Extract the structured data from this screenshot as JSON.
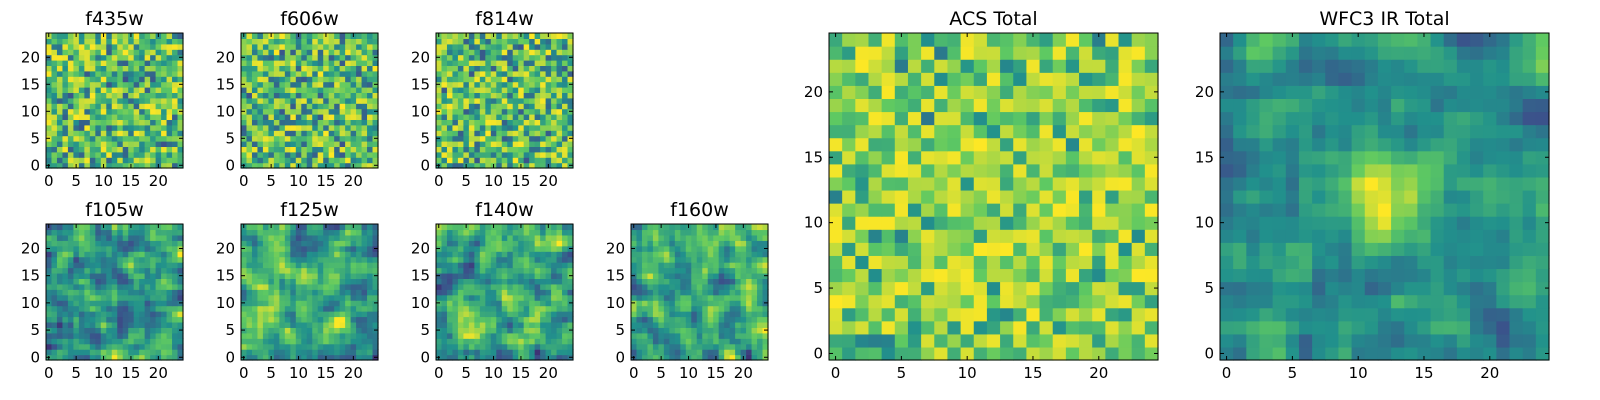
{
  "chart_data": [
    {
      "type": "heatmap",
      "title": "f435w",
      "xticks": [
        0,
        5,
        10,
        15,
        20
      ],
      "yticks": [
        0,
        5,
        10,
        15,
        20
      ],
      "xlim": [
        0,
        25
      ],
      "ylim": [
        0,
        25
      ],
      "grid_size": 25,
      "colormap": "viridis",
      "cmap_stops": [
        "#440154",
        "#3b528b",
        "#21918c",
        "#5ec962",
        "#fde725"
      ],
      "pattern": "noise",
      "seed": 11
    },
    {
      "type": "heatmap",
      "title": "f606w",
      "xticks": [
        0,
        5,
        10,
        15,
        20
      ],
      "yticks": [
        0,
        5,
        10,
        15,
        20
      ],
      "xlim": [
        0,
        25
      ],
      "ylim": [
        0,
        25
      ],
      "grid_size": 25,
      "colormap": "viridis",
      "cmap_stops": [
        "#440154",
        "#3b528b",
        "#21918c",
        "#5ec962",
        "#fde725"
      ],
      "pattern": "noise",
      "seed": 23
    },
    {
      "type": "heatmap",
      "title": "f814w",
      "xticks": [
        0,
        5,
        10,
        15,
        20
      ],
      "yticks": [
        0,
        5,
        10,
        15,
        20
      ],
      "xlim": [
        0,
        25
      ],
      "ylim": [
        0,
        25
      ],
      "grid_size": 25,
      "colormap": "viridis",
      "cmap_stops": [
        "#440154",
        "#3b528b",
        "#21918c",
        "#5ec962",
        "#fde725"
      ],
      "pattern": "noise",
      "seed": 37
    },
    {
      "type": "heatmap",
      "title": "f105w",
      "xticks": [
        0,
        5,
        10,
        15,
        20
      ],
      "yticks": [
        0,
        5,
        10,
        15,
        20
      ],
      "xlim": [
        0,
        25
      ],
      "ylim": [
        0,
        25
      ],
      "grid_size": 25,
      "colormap": "viridis",
      "cmap_stops": [
        "#440154",
        "#3b528b",
        "#21918c",
        "#5ec962",
        "#fde725"
      ],
      "pattern": "smooth",
      "seed": 41
    },
    {
      "type": "heatmap",
      "title": "f125w",
      "xticks": [
        0,
        5,
        10,
        15,
        20
      ],
      "yticks": [
        0,
        5,
        10,
        15,
        20
      ],
      "xlim": [
        0,
        25
      ],
      "ylim": [
        0,
        25
      ],
      "grid_size": 25,
      "colormap": "viridis",
      "cmap_stops": [
        "#440154",
        "#3b528b",
        "#21918c",
        "#5ec962",
        "#fde725"
      ],
      "pattern": "smooth",
      "seed": 53
    },
    {
      "type": "heatmap",
      "title": "f140w",
      "xticks": [
        0,
        5,
        10,
        15,
        20
      ],
      "yticks": [
        0,
        5,
        10,
        15,
        20
      ],
      "xlim": [
        0,
        25
      ],
      "ylim": [
        0,
        25
      ],
      "grid_size": 25,
      "colormap": "viridis",
      "cmap_stops": [
        "#440154",
        "#3b528b",
        "#21918c",
        "#5ec962",
        "#fde725"
      ],
      "pattern": "smooth",
      "seed": 67
    },
    {
      "type": "heatmap",
      "title": "f160w",
      "xticks": [
        0,
        5,
        10,
        15,
        20
      ],
      "yticks": [
        0,
        5,
        10,
        15,
        20
      ],
      "xlim": [
        0,
        25
      ],
      "ylim": [
        0,
        25
      ],
      "grid_size": 25,
      "colormap": "viridis",
      "cmap_stops": [
        "#440154",
        "#3b528b",
        "#21918c",
        "#5ec962",
        "#fde725"
      ],
      "pattern": "smooth",
      "seed": 79
    },
    {
      "type": "heatmap",
      "title": "ACS Total",
      "xticks": [
        0,
        5,
        10,
        15,
        20
      ],
      "yticks": [
        0,
        5,
        10,
        15,
        20
      ],
      "xlim": [
        0,
        25
      ],
      "ylim": [
        0,
        25
      ],
      "grid_size": 25,
      "colormap": "viridis",
      "cmap_stops": [
        "#440154",
        "#3b528b",
        "#21918c",
        "#5ec962",
        "#fde725"
      ],
      "pattern": "bright",
      "seed": 97
    },
    {
      "type": "heatmap",
      "title": "WFC3 IR Total",
      "xticks": [
        0,
        5,
        10,
        15,
        20
      ],
      "yticks": [
        0,
        5,
        10,
        15,
        20
      ],
      "xlim": [
        0,
        25
      ],
      "ylim": [
        0,
        25
      ],
      "grid_size": 25,
      "colormap": "viridis",
      "cmap_stops": [
        "#440154",
        "#3b528b",
        "#21918c",
        "#5ec962",
        "#fde725"
      ],
      "pattern": "source",
      "seed": 113
    }
  ]
}
